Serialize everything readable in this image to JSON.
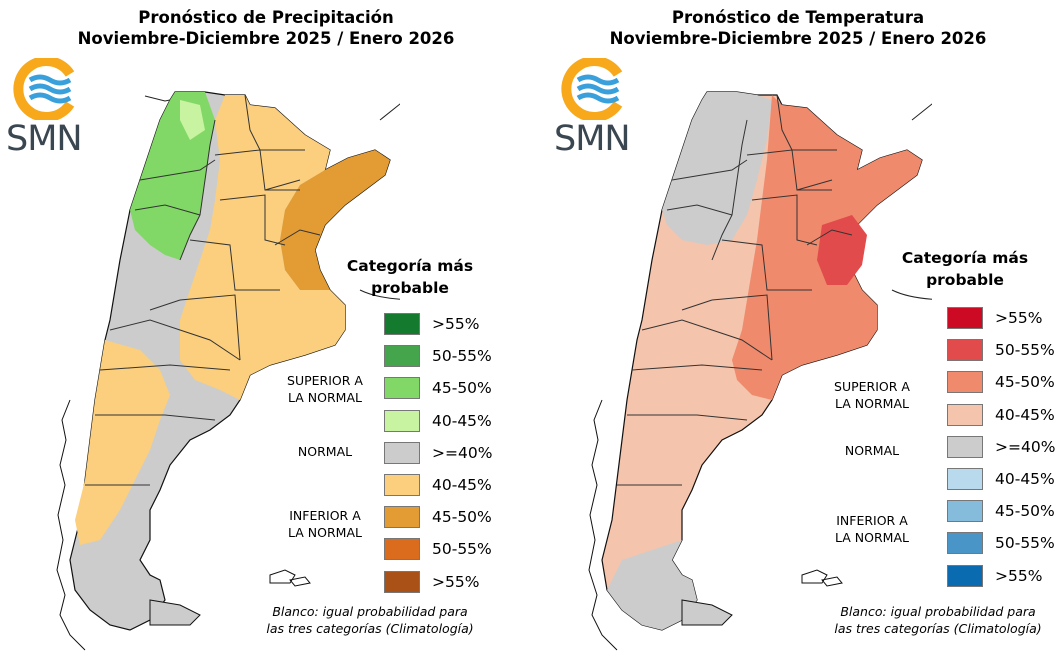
{
  "precip": {
    "title_line1": "Pronóstico de Precipitación",
    "title_line2": "Noviembre-Diciembre 2025 / Enero 2026",
    "legend_title_line1": "Categoría más",
    "legend_title_line2": "probable",
    "legend": [
      {
        "label": ">55%",
        "color": "#137a2e"
      },
      {
        "label": "50-55%",
        "color": "#45a54c"
      },
      {
        "label": "45-50%",
        "color": "#82d866"
      },
      {
        "label": "40-45%",
        "color": "#c8f3a1"
      },
      {
        "label": ">=40%",
        "color": "#cccccc"
      },
      {
        "label": "40-45%",
        "color": "#fbcf7d"
      },
      {
        "label": "45-50%",
        "color": "#e39b33"
      },
      {
        "label": "50-55%",
        "color": "#db6b1d"
      },
      {
        "label": ">55%",
        "color": "#a95116"
      }
    ],
    "cat_superior_line1": "SUPERIOR A",
    "cat_superior_line2": "LA NORMAL",
    "cat_normal": "NORMAL",
    "cat_inferior_line1": "INFERIOR A",
    "cat_inferior_line2": "LA NORMAL",
    "note_line1": "Blanco: igual probabilidad para",
    "note_line2": "las tres categorías (Climatología)"
  },
  "temp": {
    "title_line1": "Pronóstico de Temperatura",
    "title_line2": "Noviembre-Diciembre 2025 / Enero 2026",
    "legend_title_line1": "Categoría más",
    "legend_title_line2": "probable",
    "legend": [
      {
        "label": ">55%",
        "color": "#cc0a24"
      },
      {
        "label": "50-55%",
        "color": "#e14b4b"
      },
      {
        "label": "45-50%",
        "color": "#ef8a6c"
      },
      {
        "label": "40-45%",
        "color": "#f5c4ac"
      },
      {
        "label": ">=40%",
        "color": "#cccccc"
      },
      {
        "label": "40-45%",
        "color": "#b9d9ec"
      },
      {
        "label": "45-50%",
        "color": "#86bcdb"
      },
      {
        "label": "50-55%",
        "color": "#4a95c7"
      },
      {
        "label": ">55%",
        "color": "#0b6bb0"
      }
    ],
    "cat_superior_line1": "SUPERIOR A",
    "cat_superior_line2": "LA NORMAL",
    "cat_normal": "NORMAL",
    "cat_inferior_line1": "INFERIOR A",
    "cat_inferior_line2": "LA NORMAL",
    "note_line1": "Blanco: igual probabilidad para",
    "note_line2": "las tres categorías (Climatología)"
  },
  "logo_text": "SMN",
  "map_colors": {
    "outline": "#222222",
    "border": "#333333",
    "logo_orange": "#f7a81b",
    "logo_blue": "#3aa0dc"
  }
}
